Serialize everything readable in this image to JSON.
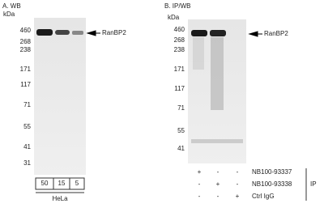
{
  "panels": [
    {
      "title": "A. WB",
      "unit": "kDa",
      "markers": [
        "460",
        "268",
        "238",
        "171",
        "117",
        "71",
        "55",
        "41",
        "31"
      ],
      "target": "RanBP2",
      "lanes": [
        "50",
        "15",
        "5"
      ],
      "sample": "HeLa"
    },
    {
      "title": "B. IP/WB",
      "unit": "kDa",
      "markers": [
        "460",
        "268",
        "238",
        "171",
        "117",
        "71",
        "55",
        "41"
      ],
      "target": "RanBP2",
      "rows": [
        {
          "label": "NB100-93337",
          "marks": [
            "+",
            "-",
            "-"
          ]
        },
        {
          "label": "NB100-93338",
          "marks": [
            "-",
            "+",
            "-"
          ]
        },
        {
          "label": "Ctrl IgG",
          "marks": [
            "-",
            "-",
            "+"
          ]
        }
      ],
      "group": "IP"
    }
  ]
}
